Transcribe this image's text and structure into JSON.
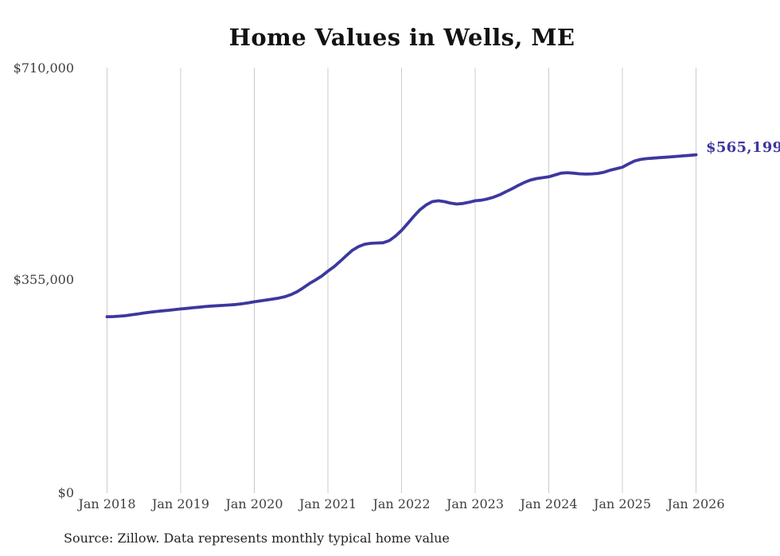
{
  "title": "Home Values in Wells, ME",
  "source_note": "Source: Zillow. Data represents monthly typical home value",
  "end_label": "$565,199",
  "colors": {
    "line": "#3d389e",
    "end_label": "#3d389e",
    "grid": "#cccccc",
    "title_text": "#121212",
    "axis_text": "#3f3f3f",
    "source_text": "#232323",
    "background": "#ffffff"
  },
  "chart_data": {
    "type": "line",
    "title": "Home Values in Wells, ME",
    "xlabel": "",
    "ylabel": "",
    "x_tick_labels": [
      "Jan 2018",
      "Jan 2019",
      "Jan 2020",
      "Jan 2021",
      "Jan 2022",
      "Jan 2023",
      "Jan 2024",
      "Jan 2025",
      "Jan 2026"
    ],
    "y_tick_labels": [
      "$0",
      "$355,000",
      "$710,000"
    ],
    "y_ticks": [
      0,
      355000,
      710000
    ],
    "ylim": [
      0,
      710000
    ],
    "grid": "vertical-only",
    "legend": "none",
    "end_annotation": {
      "text": "$565,199",
      "value": 565199
    },
    "series": [
      {
        "name": "Monthly typical home value",
        "start_month": "2018-01",
        "end_month": "2026-01",
        "frequency": "monthly",
        "values": [
          295000,
          295300,
          295900,
          296800,
          298200,
          299700,
          301200,
          302600,
          303800,
          304800,
          305800,
          306900,
          308000,
          309000,
          310000,
          311000,
          312000,
          312800,
          313400,
          314000,
          314700,
          315500,
          316600,
          318100,
          320000,
          321500,
          323000,
          324500,
          326200,
          328500,
          332000,
          337000,
          343500,
          350500,
          356500,
          363000,
          371000,
          378500,
          387500,
          397000,
          406000,
          412000,
          416000,
          417500,
          418000,
          418500,
          422000,
          429500,
          439000,
          450500,
          462500,
          473500,
          481500,
          487000,
          488500,
          487000,
          484500,
          483000,
          484000,
          486000,
          488500,
          489500,
          491500,
          494500,
          498500,
          503500,
          508500,
          514000,
          519000,
          523000,
          525500,
          527000,
          528500,
          531500,
          534500,
          535300,
          534500,
          533500,
          533000,
          533300,
          534200,
          536200,
          539500,
          542000,
          544500,
          550000,
          555000,
          557500,
          558800,
          559700,
          560400,
          561100,
          561900,
          562700,
          563500,
          564300,
          565199
        ]
      }
    ]
  }
}
